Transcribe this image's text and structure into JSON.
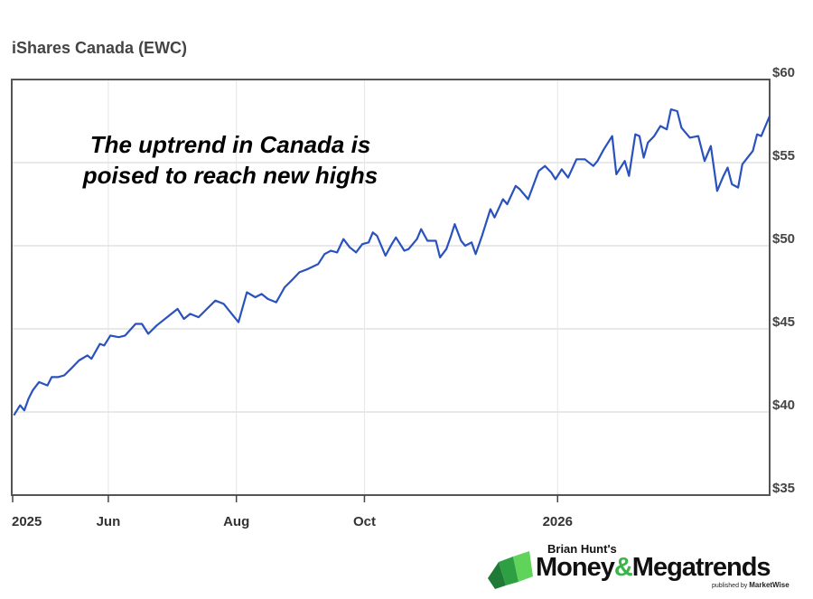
{
  "chart_data": {
    "type": "line",
    "title": "iShares Canada (EWC)",
    "annotation": [
      "The uptrend in Canada is",
      "poised to reach new highs"
    ],
    "xlim": [
      "2025-04-16",
      "2026-04-12"
    ],
    "ylim": [
      35,
      60
    ],
    "x_ticks": [
      {
        "date": "2025-04-16",
        "label": "2025"
      },
      {
        "date": "2025-06-01",
        "label": "Jun"
      },
      {
        "date": "2025-08-01",
        "label": "Aug"
      },
      {
        "date": "2025-10-01",
        "label": "Oct"
      },
      {
        "date": "2026-01-01",
        "label": "2026"
      }
    ],
    "y_ticks": [
      {
        "value": 60,
        "label": "$60"
      },
      {
        "value": 55,
        "label": "$55"
      },
      {
        "value": 50,
        "label": "$50"
      },
      {
        "value": 45,
        "label": "$45"
      },
      {
        "value": 40,
        "label": "$40"
      },
      {
        "value": 35,
        "label": "$35"
      }
    ],
    "grid": true,
    "y_axis_position": "right",
    "line_color": "#2a52be",
    "series": [
      {
        "x": [
          "2025-04-17",
          "2025-04-20",
          "2025-04-22",
          "2025-04-24",
          "2025-04-26",
          "2025-04-29",
          "2025-05-03",
          "2025-05-05",
          "2025-05-08",
          "2025-05-11",
          "2025-05-15",
          "2025-05-18",
          "2025-05-22",
          "2025-05-24",
          "2025-05-28",
          "2025-05-30",
          "2025-06-02",
          "2025-06-06",
          "2025-06-09",
          "2025-06-14",
          "2025-06-17",
          "2025-06-20",
          "2025-06-24",
          "2025-06-27",
          "2025-06-30",
          "2025-07-04",
          "2025-07-07",
          "2025-07-10",
          "2025-07-14",
          "2025-07-18",
          "2025-07-22",
          "2025-07-26",
          "2025-08-02",
          "2025-08-06",
          "2025-08-10",
          "2025-08-13",
          "2025-08-16",
          "2025-08-20",
          "2025-08-24",
          "2025-08-28",
          "2025-08-31",
          "2025-09-04",
          "2025-09-09",
          "2025-09-12",
          "2025-09-15",
          "2025-09-18",
          "2025-09-21",
          "2025-09-24",
          "2025-09-27",
          "2025-09-30",
          "2025-10-03",
          "2025-10-05",
          "2025-10-07",
          "2025-10-11",
          "2025-10-14",
          "2025-10-16",
          "2025-10-20",
          "2025-10-22",
          "2025-10-26",
          "2025-10-28",
          "2025-10-31",
          "2025-11-04",
          "2025-11-06",
          "2025-11-09",
          "2025-11-11",
          "2025-11-13",
          "2025-11-16",
          "2025-11-18",
          "2025-11-21",
          "2025-11-23",
          "2025-11-26",
          "2025-11-30",
          "2025-12-02",
          "2025-12-06",
          "2025-12-08",
          "2025-12-12",
          "2025-12-14",
          "2025-12-18",
          "2025-12-23",
          "2025-12-26",
          "2025-12-29",
          "2025-12-31",
          "2026-01-03",
          "2026-01-06",
          "2026-01-10",
          "2026-01-14",
          "2026-01-18",
          "2026-01-20",
          "2026-01-23",
          "2026-01-27",
          "2026-01-29",
          "2026-02-02",
          "2026-02-04",
          "2026-02-07",
          "2026-02-09",
          "2026-02-11",
          "2026-02-13",
          "2026-02-16",
          "2026-02-19",
          "2026-02-22",
          "2026-02-24",
          "2026-02-27",
          "2026-03-01",
          "2026-03-05",
          "2026-03-09",
          "2026-03-12",
          "2026-03-15",
          "2026-03-18",
          "2026-03-21",
          "2026-03-23",
          "2026-03-25",
          "2026-03-28",
          "2026-03-30",
          "2026-04-04",
          "2026-04-06",
          "2026-04-08",
          "2026-04-12"
        ],
        "y": [
          39.8,
          40.4,
          40.1,
          40.8,
          41.3,
          41.8,
          41.6,
          42.1,
          42.1,
          42.2,
          42.7,
          43.1,
          43.4,
          43.2,
          44.1,
          44.0,
          44.6,
          44.5,
          44.6,
          45.3,
          45.3,
          44.7,
          45.2,
          45.5,
          45.8,
          46.2,
          45.6,
          45.9,
          45.7,
          46.2,
          46.7,
          46.5,
          45.4,
          47.2,
          46.9,
          47.1,
          46.8,
          46.6,
          47.5,
          48.0,
          48.4,
          48.6,
          48.9,
          49.5,
          49.7,
          49.6,
          50.4,
          49.9,
          49.6,
          50.1,
          50.2,
          50.8,
          50.6,
          49.4,
          50.1,
          50.5,
          49.7,
          49.8,
          50.4,
          51.0,
          50.3,
          50.3,
          49.3,
          49.8,
          50.5,
          51.3,
          50.3,
          50.0,
          50.2,
          49.5,
          50.6,
          52.2,
          51.7,
          52.8,
          52.5,
          53.6,
          53.4,
          52.8,
          54.5,
          54.8,
          54.4,
          54.0,
          54.6,
          54.1,
          55.2,
          55.2,
          54.8,
          55.1,
          55.8,
          56.6,
          54.3,
          55.1,
          54.2,
          56.7,
          56.6,
          55.3,
          56.2,
          56.6,
          57.2,
          57.0,
          58.2,
          58.1,
          57.1,
          56.5,
          56.6,
          55.1,
          56.0,
          53.3,
          54.2,
          54.7,
          53.7,
          53.5,
          54.9,
          55.7,
          56.7,
          56.6,
          57.8
        ]
      }
    ]
  },
  "logo": {
    "prefix": "Brian Hunt's",
    "name_part1": "Money",
    "ampersand": "&",
    "name_part2": "Megatrends",
    "published_by": "published by",
    "publisher": "MarketWise"
  }
}
